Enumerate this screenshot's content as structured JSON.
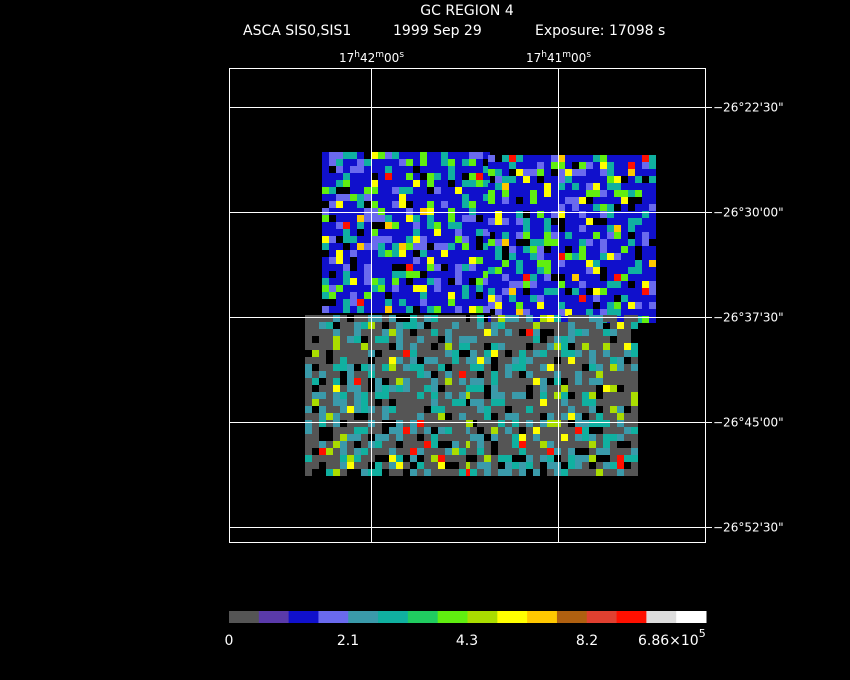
{
  "header": {
    "title": "GC REGION 4",
    "subtitle": [
      "ASCA SIS0,SIS1",
      "1999 Sep 29",
      "Exposure: 17098 s"
    ]
  },
  "ra_labels": [
    [
      "17",
      "h",
      "42",
      "m",
      "00",
      "s"
    ],
    [
      "17",
      "h",
      "41",
      "m",
      "00",
      "s"
    ]
  ],
  "dec_labels": [
    "−26°22'30\"",
    "−26°30'00\"",
    "−26°37'30\"",
    "−26°45'00\"",
    "−26°52'30\""
  ],
  "colorbar": {
    "colors": [
      "#555555",
      "#5a3aaa",
      "#1010cc",
      "#6a6aee",
      "#3a9aaa",
      "#10b0a0",
      "#20cc60",
      "#60ee10",
      "#aadd00",
      "#ffff00",
      "#ffc800",
      "#b06010",
      "#e04030",
      "#ff1000",
      "#dddddd",
      "#ffffff"
    ],
    "labels": [
      "0",
      "2.1",
      "4.3",
      "8.2"
    ],
    "max_label": [
      "6.86×10",
      "5"
    ]
  }
}
